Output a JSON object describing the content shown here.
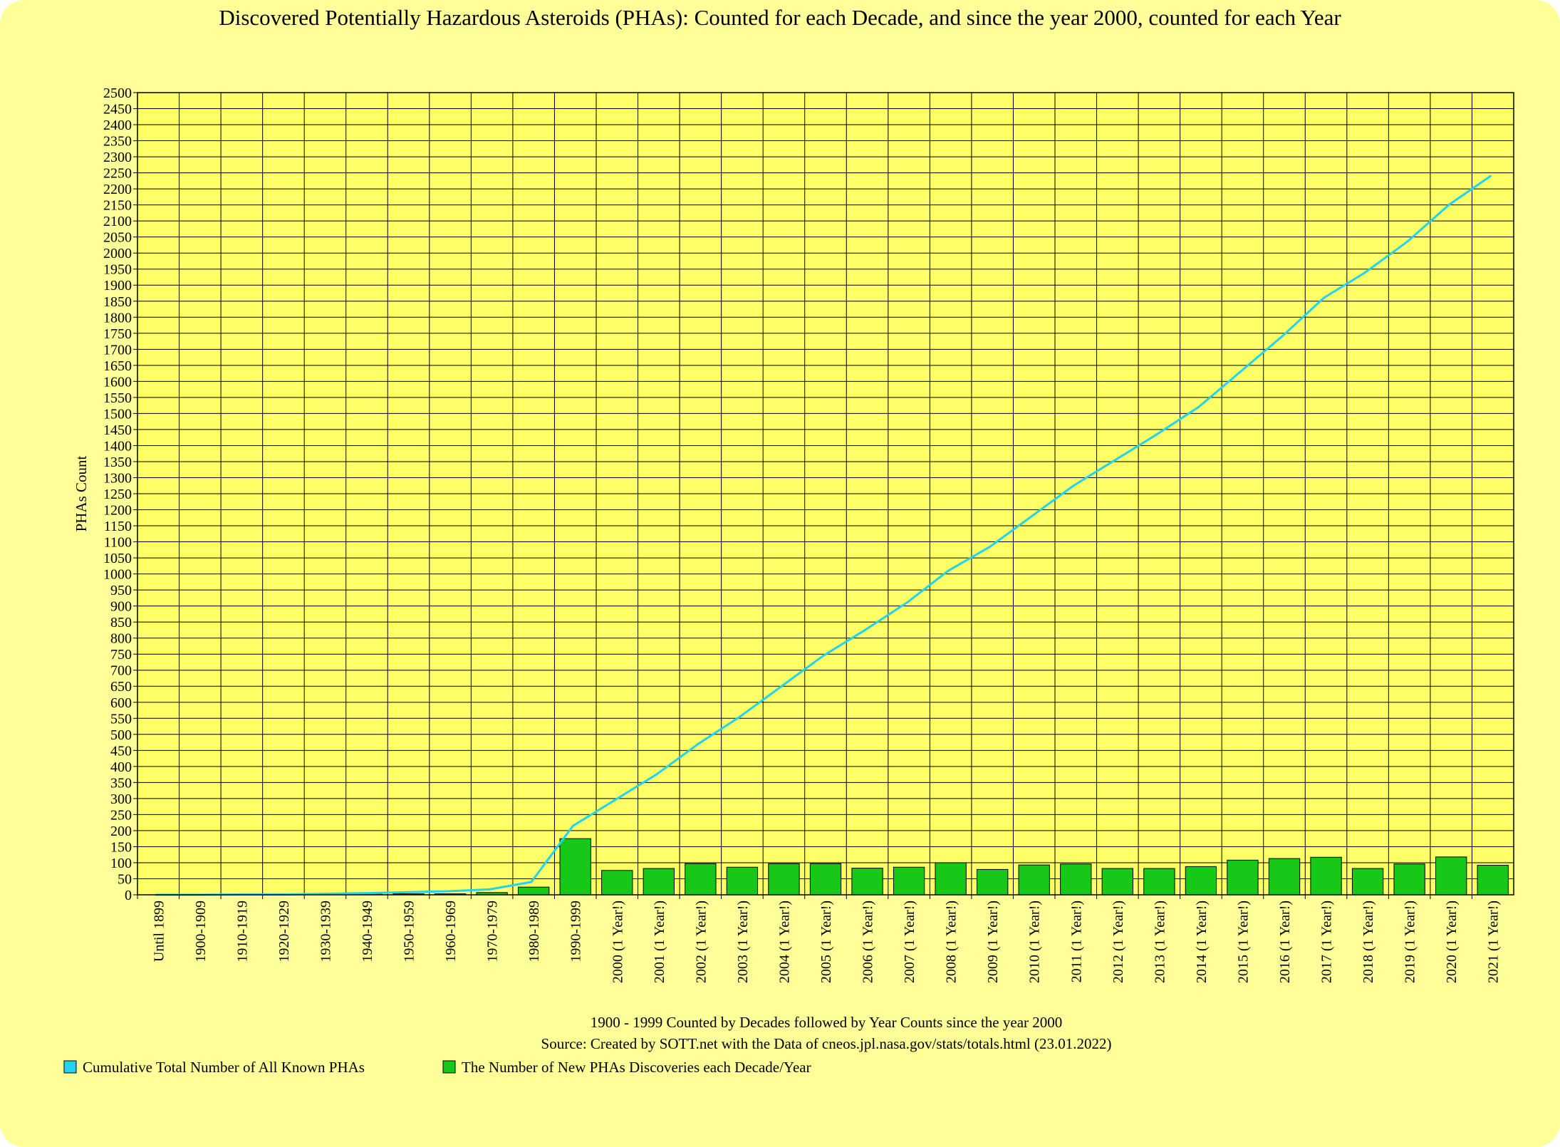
{
  "chart_data": {
    "type": "bar",
    "title": "Discovered Potentially Hazardous Asteroids (PHAs): Counted for each Decade, and since the year 2000, counted for each Year",
    "xlabel": "1900 - 1999 Counted by Decades followed by Year Counts since the year 2000",
    "source": "Source: Created by SOTT.net with the Data of cneos.jpl.nasa.gov/stats/totals.html (23.01.2022)",
    "ylabel": "PHAs Count",
    "ylim": [
      0,
      2500
    ],
    "ytick_step": 50,
    "grid": true,
    "legend_position": "bottom-left",
    "categories": [
      "Until 1899",
      "1900-1909",
      "1910-1919",
      "1920-1929",
      "1930-1939",
      "1940-1949",
      "1950-1959",
      "1960-1969",
      "1970-1979",
      "1980-1989",
      "1990-1999",
      "2000 (1 Year!)",
      "2001 (1 Year!)",
      "2002 (1 Year!)",
      "2003 (1 Year!)",
      "2004 (1 Year!)",
      "2005 (1 Year!)",
      "2006 (1 Year!)",
      "2007 (1 Year!)",
      "2008 (1 Year!)",
      "2009 (1 Year!)",
      "2010 (1 Year!)",
      "2011 (1 Year!)",
      "2012 (1 Year!)",
      "2013 (1 Year!)",
      "2014 (1 Year!)",
      "2015 (1 Year!)",
      "2016 (1 Year!)",
      "2017 (1 Year!)",
      "2018 (1 Year!)",
      "2019 (1 Year!)",
      "2020 (1 Year!)",
      "2021 (1 Year!)"
    ],
    "series": [
      {
        "name": "Cumulative Total Number of All Known PHAs",
        "type": "line",
        "color": "#22d3f0",
        "values": [
          0,
          0,
          1,
          1,
          3,
          5,
          8,
          11,
          17,
          40,
          215,
          295,
          375,
          470,
          555,
          650,
          745,
          825,
          910,
          1010,
          1085,
          1180,
          1275,
          1355,
          1435,
          1520,
          1630,
          1740,
          1860,
          1940,
          2035,
          2150,
          2240
        ]
      },
      {
        "name": "The Number of New PHAs Discoveries each Decade/Year",
        "type": "bar",
        "color": "#18c818",
        "values": [
          0,
          0,
          1,
          0,
          2,
          2,
          3,
          3,
          7,
          24,
          175,
          76,
          82,
          97,
          86,
          97,
          97,
          83,
          86,
          100,
          79,
          93,
          96,
          82,
          82,
          88,
          108,
          113,
          117,
          82,
          96,
          118,
          92
        ]
      }
    ]
  }
}
